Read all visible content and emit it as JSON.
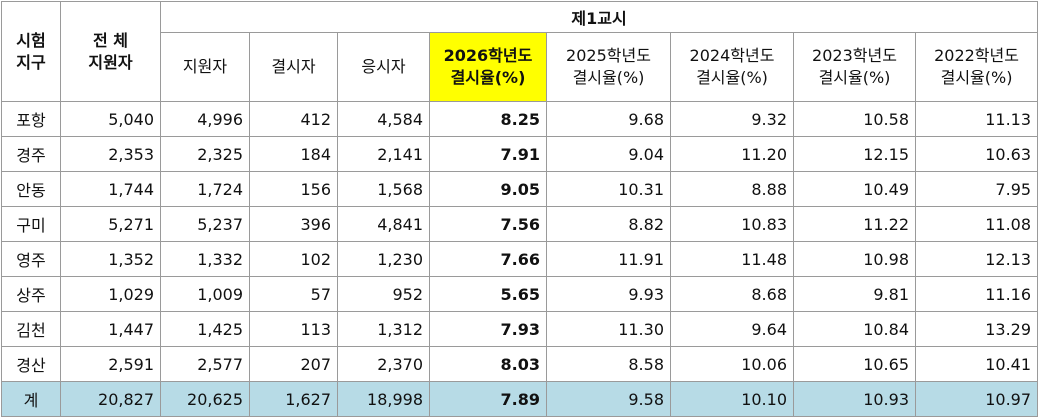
{
  "header": {
    "region": [
      "시험",
      "지구"
    ],
    "total_applicants": [
      "전 체",
      "지원자"
    ],
    "period": "제1교시",
    "sub": [
      {
        "l1": "지원자",
        "l2": ""
      },
      {
        "l1": "결시자",
        "l2": ""
      },
      {
        "l1": "응시자",
        "l2": ""
      },
      {
        "l1": "2026학년도",
        "l2": "결시율(%)"
      },
      {
        "l1": "2025학년도",
        "l2": "결시율(%)"
      },
      {
        "l1": "2024학년도",
        "l2": "결시율(%)"
      },
      {
        "l1": "2023학년도",
        "l2": "결시율(%)"
      },
      {
        "l1": "2022학년도",
        "l2": "결시율(%)"
      }
    ]
  },
  "rows": [
    [
      "포항",
      "5,040",
      "4,996",
      "412",
      "4,584",
      "8.25",
      "9.68",
      "9.32",
      "10.58",
      "11.13"
    ],
    [
      "경주",
      "2,353",
      "2,325",
      "184",
      "2,141",
      "7.91",
      "9.04",
      "11.20",
      "12.15",
      "10.63"
    ],
    [
      "안동",
      "1,744",
      "1,724",
      "156",
      "1,568",
      "9.05",
      "10.31",
      "8.88",
      "10.49",
      "7.95"
    ],
    [
      "구미",
      "5,271",
      "5,237",
      "396",
      "4,841",
      "7.56",
      "8.82",
      "10.83",
      "11.22",
      "11.08"
    ],
    [
      "영주",
      "1,352",
      "1,332",
      "102",
      "1,230",
      "7.66",
      "11.91",
      "11.48",
      "10.98",
      "12.13"
    ],
    [
      "상주",
      "1,029",
      "1,009",
      "57",
      "952",
      "5.65",
      "9.93",
      "8.68",
      "9.81",
      "11.16"
    ],
    [
      "김천",
      "1,447",
      "1,425",
      "113",
      "1,312",
      "7.93",
      "11.30",
      "9.64",
      "10.84",
      "13.29"
    ],
    [
      "경산",
      "2,591",
      "2,577",
      "207",
      "2,370",
      "8.03",
      "8.58",
      "10.06",
      "10.65",
      "10.41"
    ]
  ],
  "total": [
    "계",
    "20,827",
    "20,625",
    "1,627",
    "18,998",
    "7.89",
    "9.58",
    "10.10",
    "10.93",
    "10.97"
  ],
  "colors": {
    "highlight": "#ffff00",
    "total_row": "#b7dbe6",
    "border": "#9a9a9a"
  }
}
